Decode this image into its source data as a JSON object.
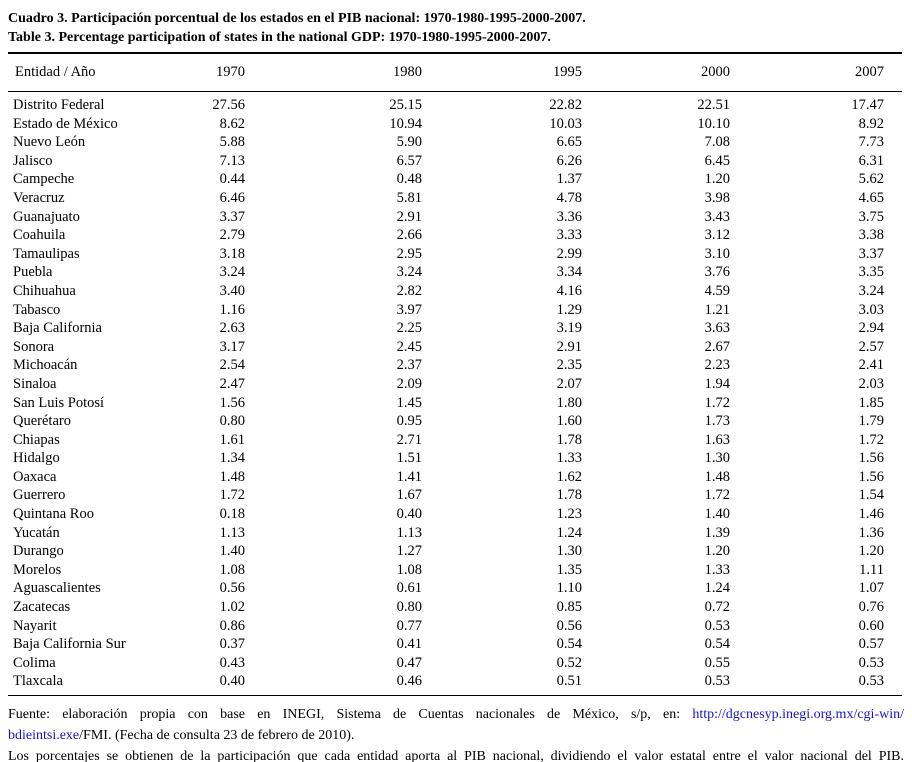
{
  "page": {
    "title_es": "Cuadro 3. Participación porcentual de los estados en el PIB nacional: 1970-1980-1995-2000-2007.",
    "title_en": "Table 3. Percentage participation of states in the national GDP: 1970-1980-1995-2000-2007."
  },
  "table": {
    "columns": [
      "Entidad / Año",
      "1970",
      "1980",
      "1995",
      "2000",
      "2007"
    ],
    "rows": [
      [
        "Distrito Federal",
        "27.56",
        "25.15",
        "22.82",
        "22.51",
        "17.47"
      ],
      [
        "Estado de México",
        "8.62",
        "10.94",
        "10.03",
        "10.10",
        "8.92"
      ],
      [
        "Nuevo León",
        "5.88",
        "5.90",
        "6.65",
        "7.08",
        "7.73"
      ],
      [
        "Jalisco",
        "7.13",
        "6.57",
        "6.26",
        "6.45",
        "6.31"
      ],
      [
        "Campeche",
        "0.44",
        "0.48",
        "1.37",
        "1.20",
        "5.62"
      ],
      [
        "Veracruz",
        "6.46",
        "5.81",
        "4.78",
        "3.98",
        "4.65"
      ],
      [
        "Guanajuato",
        "3.37",
        "2.91",
        "3.36",
        "3.43",
        "3.75"
      ],
      [
        "Coahuila",
        "2.79",
        "2.66",
        "3.33",
        "3.12",
        "3.38"
      ],
      [
        "Tamaulipas",
        "3.18",
        "2.95",
        "2.99",
        "3.10",
        "3.37"
      ],
      [
        "Puebla",
        "3.24",
        "3.24",
        "3.34",
        "3.76",
        "3.35"
      ],
      [
        "Chihuahua",
        "3.40",
        "2.82",
        "4.16",
        "4.59",
        "3.24"
      ],
      [
        "Tabasco",
        "1.16",
        "3.97",
        "1.29",
        "1.21",
        "3.03"
      ],
      [
        "Baja California",
        "2.63",
        "2.25",
        "3.19",
        "3.63",
        "2.94"
      ],
      [
        "Sonora",
        "3.17",
        "2.45",
        "2.91",
        "2.67",
        "2.57"
      ],
      [
        "Michoacán",
        "2.54",
        "2.37",
        "2.35",
        "2.23",
        "2.41"
      ],
      [
        "Sinaloa",
        "2.47",
        "2.09",
        "2.07",
        "1.94",
        "2.03"
      ],
      [
        "San Luis Potosí",
        "1.56",
        "1.45",
        "1.80",
        "1.72",
        "1.85"
      ],
      [
        "Querétaro",
        "0.80",
        "0.95",
        "1.60",
        "1.73",
        "1.79"
      ],
      [
        "Chiapas",
        "1.61",
        "2.71",
        "1.78",
        "1.63",
        "1.72"
      ],
      [
        "Hidalgo",
        "1.34",
        "1.51",
        "1.33",
        "1.30",
        "1.56"
      ],
      [
        "Oaxaca",
        "1.48",
        "1.41",
        "1.62",
        "1.48",
        "1.56"
      ],
      [
        "Guerrero",
        "1.72",
        "1.67",
        "1.78",
        "1.72",
        "1.54"
      ],
      [
        "Quintana Roo",
        "0.18",
        "0.40",
        "1.23",
        "1.40",
        "1.46"
      ],
      [
        "Yucatán",
        "1.13",
        "1.13",
        "1.24",
        "1.39",
        "1.36"
      ],
      [
        "Durango",
        "1.40",
        "1.27",
        "1.30",
        "1.20",
        "1.20"
      ],
      [
        "Morelos",
        "1.08",
        "1.08",
        "1.35",
        "1.33",
        "1.11"
      ],
      [
        "Aguascalientes",
        "0.56",
        "0.61",
        "1.10",
        "1.24",
        "1.07"
      ],
      [
        "Zacatecas",
        "1.02",
        "0.80",
        "0.85",
        "0.72",
        "0.76"
      ],
      [
        "Nayarit",
        "0.86",
        "0.77",
        "0.56",
        "0.53",
        "0.60"
      ],
      [
        "Baja California Sur",
        "0.37",
        "0.41",
        "0.54",
        "0.54",
        "0.57"
      ],
      [
        "Colima",
        "0.43",
        "0.47",
        "0.52",
        "0.55",
        "0.53"
      ],
      [
        "Tlaxcala",
        "0.40",
        "0.46",
        "0.51",
        "0.53",
        "0.53"
      ]
    ]
  },
  "footer": {
    "source_prefix": "Fuente: elaboración propia con base en INEGI, Sistema de Cuentas nacionales de México, s/p, en: ",
    "source_link_line1": "http://dgcnesyp.inegi.org.mx/cgi-win/",
    "source_link_line2": "bdieintsi.exe",
    "source_tail": "/FMI. (Fecha de consulta 23 de febrero de 2010).",
    "note": "Los porcentajes se obtienen de la participación que cada entidad aporta al PIB nacional, dividiendo el valor estatal entre el valor nacional del PIB."
  },
  "colors": {
    "text": "#000000",
    "link": "#1414cc",
    "rule": "#000000",
    "background": "#ffffff"
  }
}
